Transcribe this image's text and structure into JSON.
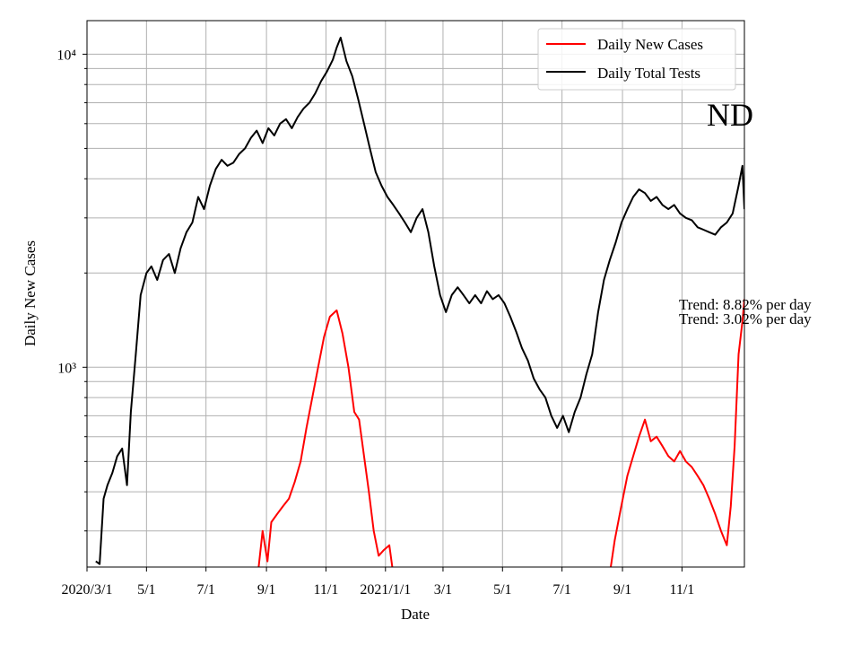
{
  "chart_data": {
    "type": "line",
    "title": "",
    "state_label": "ND",
    "xlabel": "Date",
    "ylabel": "Daily New Cases",
    "yscale": "log",
    "ylim": [
      230,
      12800
    ],
    "xlim": [
      "2020-03-01",
      "2022-01-04"
    ],
    "x_ticks": [
      {
        "date": "2020-03-01",
        "label": "2020/3/1"
      },
      {
        "date": "2020-05-01",
        "label": "5/1"
      },
      {
        "date": "2020-07-01",
        "label": "7/1"
      },
      {
        "date": "2020-09-01",
        "label": "9/1"
      },
      {
        "date": "2020-11-01",
        "label": "11/1"
      },
      {
        "date": "2021-01-01",
        "label": "2021/1/1"
      },
      {
        "date": "2021-03-01",
        "label": "3/1"
      },
      {
        "date": "2021-05-01",
        "label": "5/1"
      },
      {
        "date": "2021-07-01",
        "label": "7/1"
      },
      {
        "date": "2021-09-01",
        "label": "9/1"
      },
      {
        "date": "2021-11-01",
        "label": "11/1"
      }
    ],
    "y_ticks": [
      {
        "value": 1000,
        "label": "10³"
      },
      {
        "value": 10000,
        "label": "10⁴"
      }
    ],
    "grid": true,
    "legend": {
      "position": "upper-right"
    },
    "series": [
      {
        "name": "Daily New Cases",
        "color": "#ff0000",
        "points": [
          [
            "2020-08-24",
            230
          ],
          [
            "2020-08-28",
            300
          ],
          [
            "2020-09-02",
            240
          ],
          [
            "2020-09-06",
            320
          ],
          [
            "2020-09-12",
            340
          ],
          [
            "2020-09-18",
            360
          ],
          [
            "2020-09-24",
            380
          ],
          [
            "2020-09-30",
            430
          ],
          [
            "2020-10-06",
            500
          ],
          [
            "2020-10-12",
            640
          ],
          [
            "2020-10-18",
            800
          ],
          [
            "2020-10-24",
            1000
          ],
          [
            "2020-10-30",
            1250
          ],
          [
            "2020-11-05",
            1450
          ],
          [
            "2020-11-12",
            1520
          ],
          [
            "2020-11-18",
            1280
          ],
          [
            "2020-11-24",
            1000
          ],
          [
            "2020-11-30",
            720
          ],
          [
            "2020-12-05",
            680
          ],
          [
            "2020-12-10",
            520
          ],
          [
            "2020-12-15",
            400
          ],
          [
            "2020-12-20",
            300
          ],
          [
            "2020-12-25",
            250
          ],
          [
            "2020-12-30",
            260
          ],
          [
            "2021-01-05",
            270
          ],
          [
            "2021-01-08",
            230
          ],
          null,
          [
            "2021-08-20",
            230
          ],
          [
            "2021-08-24",
            280
          ],
          [
            "2021-08-30",
            350
          ],
          [
            "2021-09-06",
            450
          ],
          [
            "2021-09-12",
            520
          ],
          [
            "2021-09-18",
            600
          ],
          [
            "2021-09-24",
            680
          ],
          [
            "2021-09-30",
            580
          ],
          [
            "2021-10-06",
            600
          ],
          [
            "2021-10-12",
            560
          ],
          [
            "2021-10-18",
            520
          ],
          [
            "2021-10-24",
            500
          ],
          [
            "2021-10-30",
            540
          ],
          [
            "2021-11-05",
            500
          ],
          [
            "2021-11-11",
            480
          ],
          [
            "2021-11-17",
            450
          ],
          [
            "2021-11-23",
            420
          ],
          [
            "2021-11-29",
            380
          ],
          [
            "2021-12-05",
            340
          ],
          [
            "2021-12-11",
            300
          ],
          [
            "2021-12-17",
            270
          ],
          [
            "2021-12-21",
            360
          ],
          [
            "2021-12-25",
            560
          ],
          [
            "2021-12-29",
            1100
          ],
          [
            "2022-01-02",
            1400
          ],
          [
            "2022-01-04",
            1650
          ]
        ]
      },
      {
        "name": "Daily Total Tests",
        "color": "#000000",
        "points": [
          [
            "2020-03-10",
            240
          ],
          [
            "2020-03-14",
            235
          ],
          [
            "2020-03-18",
            380
          ],
          [
            "2020-03-22",
            420
          ],
          [
            "2020-03-27",
            460
          ],
          [
            "2020-04-01",
            520
          ],
          [
            "2020-04-06",
            550
          ],
          [
            "2020-04-11",
            420
          ],
          [
            "2020-04-15",
            720
          ],
          [
            "2020-04-20",
            1100
          ],
          [
            "2020-04-25",
            1700
          ],
          [
            "2020-05-01",
            2000
          ],
          [
            "2020-05-06",
            2100
          ],
          [
            "2020-05-12",
            1900
          ],
          [
            "2020-05-18",
            2200
          ],
          [
            "2020-05-24",
            2300
          ],
          [
            "2020-05-30",
            2000
          ],
          [
            "2020-06-05",
            2400
          ],
          [
            "2020-06-11",
            2700
          ],
          [
            "2020-06-17",
            2900
          ],
          [
            "2020-06-23",
            3500
          ],
          [
            "2020-06-29",
            3200
          ],
          [
            "2020-07-05",
            3800
          ],
          [
            "2020-07-11",
            4300
          ],
          [
            "2020-07-17",
            4600
          ],
          [
            "2020-07-23",
            4400
          ],
          [
            "2020-07-29",
            4500
          ],
          [
            "2020-08-04",
            4800
          ],
          [
            "2020-08-10",
            5000
          ],
          [
            "2020-08-16",
            5400
          ],
          [
            "2020-08-22",
            5700
          ],
          [
            "2020-08-28",
            5200
          ],
          [
            "2020-09-03",
            5800
          ],
          [
            "2020-09-09",
            5500
          ],
          [
            "2020-09-15",
            6000
          ],
          [
            "2020-09-21",
            6200
          ],
          [
            "2020-09-27",
            5800
          ],
          [
            "2020-10-03",
            6300
          ],
          [
            "2020-10-09",
            6700
          ],
          [
            "2020-10-15",
            7000
          ],
          [
            "2020-10-21",
            7500
          ],
          [
            "2020-10-27",
            8200
          ],
          [
            "2020-11-02",
            8800
          ],
          [
            "2020-11-08",
            9600
          ],
          [
            "2020-11-12",
            10500
          ],
          [
            "2020-11-16",
            11300
          ],
          [
            "2020-11-22",
            9500
          ],
          [
            "2020-11-28",
            8500
          ],
          [
            "2020-12-04",
            7200
          ],
          [
            "2020-12-10",
            6000
          ],
          [
            "2020-12-16",
            5000
          ],
          [
            "2020-12-22",
            4200
          ],
          [
            "2020-12-28",
            3800
          ],
          [
            "2021-01-03",
            3500
          ],
          [
            "2021-01-09",
            3300
          ],
          [
            "2021-01-15",
            3100
          ],
          [
            "2021-01-21",
            2900
          ],
          [
            "2021-01-27",
            2700
          ],
          [
            "2021-02-02",
            3000
          ],
          [
            "2021-02-08",
            3200
          ],
          [
            "2021-02-14",
            2700
          ],
          [
            "2021-02-20",
            2100
          ],
          [
            "2021-02-26",
            1700
          ],
          [
            "2021-03-04",
            1500
          ],
          [
            "2021-03-10",
            1700
          ],
          [
            "2021-03-16",
            1800
          ],
          [
            "2021-03-22",
            1700
          ],
          [
            "2021-03-28",
            1600
          ],
          [
            "2021-04-03",
            1700
          ],
          [
            "2021-04-09",
            1600
          ],
          [
            "2021-04-15",
            1750
          ],
          [
            "2021-04-21",
            1650
          ],
          [
            "2021-04-27",
            1700
          ],
          [
            "2021-05-03",
            1600
          ],
          [
            "2021-05-09",
            1450
          ],
          [
            "2021-05-15",
            1300
          ],
          [
            "2021-05-21",
            1150
          ],
          [
            "2021-05-27",
            1050
          ],
          [
            "2021-06-02",
            920
          ],
          [
            "2021-06-08",
            850
          ],
          [
            "2021-06-14",
            800
          ],
          [
            "2021-06-20",
            700
          ],
          [
            "2021-06-26",
            640
          ],
          [
            "2021-07-02",
            700
          ],
          [
            "2021-07-08",
            620
          ],
          [
            "2021-07-14",
            720
          ],
          [
            "2021-07-20",
            800
          ],
          [
            "2021-07-26",
            950
          ],
          [
            "2021-08-01",
            1100
          ],
          [
            "2021-08-07",
            1500
          ],
          [
            "2021-08-13",
            1900
          ],
          [
            "2021-08-19",
            2200
          ],
          [
            "2021-08-25",
            2500
          ],
          [
            "2021-08-31",
            2900
          ],
          [
            "2021-09-06",
            3200
          ],
          [
            "2021-09-12",
            3500
          ],
          [
            "2021-09-18",
            3700
          ],
          [
            "2021-09-24",
            3600
          ],
          [
            "2021-09-30",
            3400
          ],
          [
            "2021-10-06",
            3500
          ],
          [
            "2021-10-12",
            3300
          ],
          [
            "2021-10-18",
            3200
          ],
          [
            "2021-10-24",
            3300
          ],
          [
            "2021-10-30",
            3100
          ],
          [
            "2021-11-05",
            3000
          ],
          [
            "2021-11-11",
            2950
          ],
          [
            "2021-11-17",
            2800
          ],
          [
            "2021-11-23",
            2750
          ],
          [
            "2021-11-29",
            2700
          ],
          [
            "2021-12-05",
            2650
          ],
          [
            "2021-12-11",
            2800
          ],
          [
            "2021-12-17",
            2900
          ],
          [
            "2021-12-23",
            3100
          ],
          [
            "2021-12-29",
            3800
          ],
          [
            "2022-01-02",
            4400
          ],
          [
            "2022-01-04",
            3200
          ]
        ]
      }
    ],
    "annotations": [
      "Trend: 8.82% per day",
      "Trend: 3.02% per day"
    ]
  }
}
